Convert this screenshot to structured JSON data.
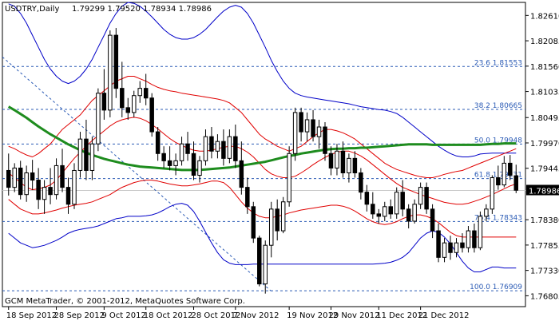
{
  "header": {
    "symbol_timeframe": "USDTRY,Daily",
    "ohlc": "1.79299 1.79520 1.78934 1.78986"
  },
  "footer": {
    "copyright": "GCM MetaTrader, © 2001-2012, MetaQuotes Software Corp."
  },
  "current_price": "1.78986",
  "colors": {
    "background": "#ffffff",
    "candle_body": "#000000",
    "envelope_red": "#e00000",
    "envelope_blue": "#0000c8",
    "moving_average": "#1e8c1e",
    "fibo_dashed": "#2b5bb5",
    "fibo_text": "#2b5bb5",
    "grid": "#c8c8c8",
    "price_tag_bg": "#000000",
    "price_tag_text": "#ffffff"
  },
  "chart_data": {
    "type": "candlestick",
    "symbol": "USDTRY",
    "timeframe": "Daily",
    "ylim": [
      1.7658,
      1.8288
    ],
    "y_ticks": [
      "1.82610",
      "1.82085",
      "1.81560",
      "1.81035",
      "1.80495",
      "1.79970",
      "1.79445",
      "1.78986",
      "1.78380",
      "1.77855",
      "1.77330",
      "1.76805"
    ],
    "x_ticks": [
      "18 Sep 2012",
      "28 Sep 2012",
      "9 Oct 2012",
      "18 Oct 2012",
      "28 Oct 2012",
      "7 Nov 2012",
      "19 Nov 2012",
      "29 Nov 2012",
      "11 Dec 2012",
      "21 Dec 2012"
    ],
    "fibonacci_levels": [
      {
        "label": "23.6 1.81553",
        "value": 1.81553
      },
      {
        "label": "38.2 1.80665",
        "value": 1.80665
      },
      {
        "label": "50.0 1.79948",
        "value": 1.79948
      },
      {
        "label": "61.8 1.79231",
        "value": 1.79231
      },
      {
        "label": "76.4 1.78343",
        "value": 1.78343
      },
      {
        "label": "100.0 1.76909",
        "value": 1.76909
      }
    ],
    "candles": [
      [
        1.794,
        1.7975,
        1.7888,
        1.7905
      ],
      [
        1.7905,
        1.7955,
        1.7895,
        1.7945
      ],
      [
        1.7945,
        1.796,
        1.788,
        1.789
      ],
      [
        1.789,
        1.795,
        1.7875,
        1.7935
      ],
      [
        1.7935,
        1.7962,
        1.79,
        1.792
      ],
      [
        1.792,
        1.7945,
        1.786,
        1.788
      ],
      [
        1.788,
        1.792,
        1.785,
        1.7905
      ],
      [
        1.7905,
        1.7945,
        1.787,
        1.789
      ],
      [
        1.789,
        1.7965,
        1.788,
        1.795
      ],
      [
        1.795,
        1.7985,
        1.7895,
        1.7905
      ],
      [
        1.7905,
        1.7925,
        1.785,
        1.787
      ],
      [
        1.787,
        1.7955,
        1.786,
        1.794
      ],
      [
        1.794,
        1.802,
        1.7925,
        1.8005
      ],
      [
        1.8005,
        1.8045,
        1.792,
        1.794
      ],
      [
        1.794,
        1.801,
        1.792,
        1.7995
      ],
      [
        1.7995,
        1.811,
        1.798,
        1.81
      ],
      [
        1.81,
        1.815,
        1.8045,
        1.8065
      ],
      [
        1.8065,
        1.823,
        1.805,
        1.822
      ],
      [
        1.822,
        1.8235,
        1.809,
        1.811
      ],
      [
        1.811,
        1.8165,
        1.805,
        1.807
      ],
      [
        1.807,
        1.809,
        1.8045,
        1.806
      ],
      [
        1.806,
        1.8105,
        1.805,
        1.8095
      ],
      [
        1.8095,
        1.8125,
        1.808,
        1.811
      ],
      [
        1.811,
        1.814,
        1.8075,
        1.809
      ],
      [
        1.809,
        1.81,
        1.801,
        1.802
      ],
      [
        1.802,
        1.803,
        1.796,
        1.7975
      ],
      [
        1.7975,
        1.799,
        1.7945,
        1.796
      ],
      [
        1.796,
        1.799,
        1.794,
        1.795
      ],
      [
        1.795,
        1.7975,
        1.793,
        1.796
      ],
      [
        1.796,
        1.801,
        1.795,
        1.7995
      ],
      [
        1.7995,
        1.802,
        1.796,
        1.7975
      ],
      [
        1.7975,
        1.8,
        1.792,
        1.793
      ],
      [
        1.793,
        1.797,
        1.7915,
        1.796
      ],
      [
        1.796,
        1.8025,
        1.795,
        1.801
      ],
      [
        1.801,
        1.803,
        1.7965,
        1.798
      ],
      [
        1.798,
        1.8015,
        1.7965,
        1.8
      ],
      [
        1.8,
        1.8025,
        1.795,
        1.7965
      ],
      [
        1.7965,
        1.8025,
        1.7955,
        1.801
      ],
      [
        1.801,
        1.8035,
        1.7945,
        1.796
      ],
      [
        1.796,
        1.8,
        1.789,
        1.7905
      ],
      [
        1.7905,
        1.7925,
        1.785,
        1.7865
      ],
      [
        1.7865,
        1.7875,
        1.779,
        1.78
      ],
      [
        1.78,
        1.7805,
        1.77,
        1.7705
      ],
      [
        1.7705,
        1.7795,
        1.7685,
        1.7785
      ],
      [
        1.7785,
        1.7875,
        1.776,
        1.786
      ],
      [
        1.786,
        1.788,
        1.7795,
        1.7815
      ],
      [
        1.7815,
        1.7885,
        1.781,
        1.7875
      ],
      [
        1.7875,
        1.799,
        1.7865,
        1.7975
      ],
      [
        1.7975,
        1.807,
        1.796,
        1.806
      ],
      [
        1.806,
        1.807,
        1.8,
        1.802
      ],
      [
        1.802,
        1.806,
        1.8,
        1.8045
      ],
      [
        1.8045,
        1.8065,
        1.8,
        1.801
      ],
      [
        1.801,
        1.8045,
        1.7985,
        1.803
      ],
      [
        1.803,
        1.804,
        1.796,
        1.7975
      ],
      [
        1.7975,
        1.799,
        1.793,
        1.7945
      ],
      [
        1.7945,
        1.7995,
        1.793,
        1.798
      ],
      [
        1.798,
        1.8,
        1.7925,
        1.7935
      ],
      [
        1.7935,
        1.7975,
        1.7915,
        1.7965
      ],
      [
        1.7965,
        1.798,
        1.7925,
        1.7935
      ],
      [
        1.7935,
        1.7945,
        1.788,
        1.7895
      ],
      [
        1.7895,
        1.791,
        1.7855,
        1.787
      ],
      [
        1.787,
        1.7895,
        1.784,
        1.785
      ],
      [
        1.785,
        1.786,
        1.783,
        1.7845
      ],
      [
        1.7845,
        1.7875,
        1.7835,
        1.7865
      ],
      [
        1.7865,
        1.788,
        1.784,
        1.785
      ],
      [
        1.785,
        1.7905,
        1.784,
        1.7895
      ],
      [
        1.7895,
        1.792,
        1.7845,
        1.786
      ],
      [
        1.786,
        1.787,
        1.782,
        1.7835
      ],
      [
        1.7835,
        1.788,
        1.783,
        1.787
      ],
      [
        1.787,
        1.7915,
        1.786,
        1.7905
      ],
      [
        1.7905,
        1.7915,
        1.785,
        1.786
      ],
      [
        1.786,
        1.787,
        1.78,
        1.7815
      ],
      [
        1.7815,
        1.783,
        1.775,
        1.776
      ],
      [
        1.776,
        1.78,
        1.775,
        1.779
      ],
      [
        1.779,
        1.7805,
        1.7755,
        1.777
      ],
      [
        1.777,
        1.78,
        1.776,
        1.779
      ],
      [
        1.779,
        1.781,
        1.777,
        1.778
      ],
      [
        1.778,
        1.7825,
        1.777,
        1.7815
      ],
      [
        1.7815,
        1.783,
        1.777,
        1.778
      ],
      [
        1.778,
        1.7855,
        1.7775,
        1.7845
      ],
      [
        1.7845,
        1.787,
        1.7835,
        1.786
      ],
      [
        1.786,
        1.793,
        1.785,
        1.7925
      ],
      [
        1.7925,
        1.795,
        1.79,
        1.791
      ],
      [
        1.791,
        1.797,
        1.7905,
        1.7955
      ],
      [
        1.7955,
        1.7972,
        1.792,
        1.793
      ],
      [
        1.7929,
        1.7952,
        1.7893,
        1.7899
      ]
    ],
    "moving_average": [
      1.8072,
      1.8065,
      1.8057,
      1.8049,
      1.804,
      1.8031,
      1.8023,
      1.8015,
      1.8008,
      1.8001,
      1.7994,
      1.7988,
      1.7982,
      1.7977,
      1.7972,
      1.7968,
      1.7964,
      1.7961,
      1.7958,
      1.7955,
      1.7952,
      1.795,
      1.7948,
      1.7947,
      1.7946,
      1.7945,
      1.7944,
      1.7943,
      1.7942,
      1.7941,
      1.7941,
      1.7941,
      1.7941,
      1.7942,
      1.7943,
      1.7944,
      1.7945,
      1.7946,
      1.7948,
      1.795,
      1.7952,
      1.7954,
      1.7956,
      1.7958,
      1.7961,
      1.7964,
      1.7967,
      1.797,
      1.7972,
      1.7975,
      1.7977,
      1.7979,
      1.7981,
      1.7983,
      1.7984,
      1.7985,
      1.7985,
      1.7986,
      1.7986,
      1.7987,
      1.7987,
      1.7988,
      1.7989,
      1.799,
      1.7991,
      1.7992,
      1.7993,
      1.7994,
      1.7994,
      1.7994,
      1.7994,
      1.7993,
      1.7993,
      1.7993,
      1.7993,
      1.7993,
      1.7993,
      1.7993,
      1.7993,
      1.7993,
      1.7994,
      1.7995,
      1.7995,
      1.7996,
      1.7996,
      1.7996
    ],
    "envelope_upper_red": [
      1.799,
      1.7985,
      1.7978,
      1.7972,
      1.7968,
      1.7975,
      1.7985,
      1.7995,
      1.801,
      1.8025,
      1.8035,
      1.8045,
      1.8055,
      1.807,
      1.8085,
      1.8095,
      1.8105,
      1.8115,
      1.8125,
      1.813,
      1.8135,
      1.8135,
      1.813,
      1.8125,
      1.8118,
      1.8112,
      1.8108,
      1.8105,
      1.8103,
      1.81,
      1.8098,
      1.8096,
      1.8094,
      1.8092,
      1.809,
      1.8088,
      1.8085,
      1.808,
      1.807,
      1.806,
      1.8045,
      1.803,
      1.8015,
      1.8005,
      1.7998,
      1.799,
      1.7985,
      1.798,
      1.7985,
      1.799,
      1.8,
      1.801,
      1.8018,
      1.8025,
      1.8025,
      1.8022,
      1.8018,
      1.8012,
      1.8005,
      1.7995,
      1.7985,
      1.7975,
      1.7965,
      1.7955,
      1.7948,
      1.7942,
      1.7938,
      1.7934,
      1.793,
      1.7927,
      1.7925,
      1.7925,
      1.7928,
      1.7932,
      1.7935,
      1.7938,
      1.794,
      1.7945,
      1.795,
      1.7955,
      1.796,
      1.7965,
      1.797,
      1.7975,
      1.798,
      1.7985
    ],
    "envelope_mid_red": [
      1.7935,
      1.7925,
      1.7915,
      1.7905,
      1.79,
      1.7902,
      1.7905,
      1.791,
      1.792,
      1.7935,
      1.795,
      1.7965,
      1.7978,
      1.799,
      1.8002,
      1.8012,
      1.8022,
      1.8032,
      1.804,
      1.8045,
      1.8048,
      1.805,
      1.8048,
      1.8043,
      1.8035,
      1.8026,
      1.8016,
      1.8006,
      1.7998,
      1.7992,
      1.7986,
      1.7982,
      1.798,
      1.798,
      1.7982,
      1.7985,
      1.7988,
      1.799,
      1.799,
      1.7985,
      1.7978,
      1.7968,
      1.7955,
      1.7942,
      1.7933,
      1.7928,
      1.7925,
      1.7925,
      1.7928,
      1.7935,
      1.7943,
      1.7952,
      1.796,
      1.7967,
      1.7973,
      1.7978,
      1.798,
      1.798,
      1.7976,
      1.797,
      1.7962,
      1.7952,
      1.7942,
      1.7932,
      1.7922,
      1.7913,
      1.7905,
      1.79,
      1.7895,
      1.789,
      1.7886,
      1.7882,
      1.7878,
      1.7874,
      1.7872,
      1.787,
      1.787,
      1.7872,
      1.7876,
      1.788,
      1.7885,
      1.789,
      1.7896,
      1.7902,
      1.7908,
      1.7912
    ],
    "envelope_lower_red": [
      1.788,
      1.787,
      1.786,
      1.7855,
      1.785,
      1.785,
      1.7852,
      1.7855,
      1.7858,
      1.7862,
      1.7865,
      1.7868,
      1.787,
      1.7872,
      1.7875,
      1.788,
      1.7885,
      1.789,
      1.7898,
      1.7905,
      1.791,
      1.7915,
      1.7918,
      1.792,
      1.792,
      1.7918,
      1.7915,
      1.7912,
      1.791,
      1.7908,
      1.7908,
      1.791,
      1.7912,
      1.7915,
      1.7918,
      1.7918,
      1.7915,
      1.7905,
      1.789,
      1.7875,
      1.7862,
      1.7852,
      1.7845,
      1.7842,
      1.7842,
      1.7845,
      1.7848,
      1.7852,
      1.7855,
      1.7858,
      1.786,
      1.7862,
      1.7864,
      1.7866,
      1.7868,
      1.7868,
      1.7866,
      1.7862,
      1.7856,
      1.7848,
      1.784,
      1.7834,
      1.783,
      1.7828,
      1.783,
      1.7834,
      1.784,
      1.7845,
      1.7848,
      1.7848,
      1.7845,
      1.784,
      1.7832,
      1.7822,
      1.7812,
      1.7805,
      1.7802,
      1.7802,
      1.7802,
      1.7802,
      1.7802,
      1.7802,
      1.7802,
      1.7802,
      1.7802,
      1.7802
    ],
    "band_upper_blue": [
      1.8285,
      1.828,
      1.8265,
      1.8245,
      1.822,
      1.8195,
      1.817,
      1.815,
      1.8135,
      1.8125,
      1.812,
      1.8125,
      1.8135,
      1.815,
      1.817,
      1.8195,
      1.822,
      1.8245,
      1.8265,
      1.828,
      1.8288,
      1.8286,
      1.828,
      1.827,
      1.8258,
      1.8245,
      1.8232,
      1.8222,
      1.8215,
      1.8212,
      1.8212,
      1.8215,
      1.8222,
      1.8232,
      1.8245,
      1.8258,
      1.827,
      1.8278,
      1.8282,
      1.8278,
      1.8265,
      1.8245,
      1.822,
      1.8195,
      1.8168,
      1.8145,
      1.8125,
      1.811,
      1.81,
      1.8095,
      1.8092,
      1.809,
      1.8088,
      1.8086,
      1.8084,
      1.8082,
      1.808,
      1.8078,
      1.8075,
      1.8072,
      1.807,
      1.8068,
      1.8066,
      1.8065,
      1.8062,
      1.8058,
      1.805,
      1.804,
      1.803,
      1.802,
      1.801,
      1.8,
      1.799,
      1.7982,
      1.7975,
      1.797,
      1.7968,
      1.7968,
      1.797,
      1.7974,
      1.7975,
      1.7976,
      1.7976,
      1.7976,
      1.7976,
      1.7976
    ],
    "band_lower_blue": [
      1.781,
      1.78,
      1.779,
      1.7785,
      1.778,
      1.7782,
      1.7785,
      1.779,
      1.7795,
      1.7802,
      1.781,
      1.7815,
      1.7818,
      1.782,
      1.7822,
      1.7825,
      1.783,
      1.7835,
      1.784,
      1.7842,
      1.7845,
      1.7845,
      1.7845,
      1.7846,
      1.7848,
      1.7852,
      1.7858,
      1.7865,
      1.787,
      1.7872,
      1.7868,
      1.7855,
      1.7835,
      1.7812,
      1.779,
      1.777,
      1.7755,
      1.7748,
      1.7745,
      1.7745,
      1.7745,
      1.7746,
      1.7746,
      1.7746,
      1.7746,
      1.7746,
      1.7746,
      1.7746,
      1.7746,
      1.7746,
      1.7746,
      1.7746,
      1.7746,
      1.7746,
      1.7746,
      1.7746,
      1.7746,
      1.7746,
      1.7746,
      1.7746,
      1.7746,
      1.7746,
      1.7747,
      1.7748,
      1.775,
      1.7754,
      1.776,
      1.777,
      1.7785,
      1.78,
      1.781,
      1.7815,
      1.7812,
      1.7802,
      1.7788,
      1.777,
      1.7752,
      1.7738,
      1.773,
      1.773,
      1.7735,
      1.774,
      1.774,
      1.7738,
      1.7738,
      1.7738
    ],
    "fibo_trendline": {
      "from_index": 0,
      "from_value": 1.8175,
      "to_index": 44,
      "to_value": 1.769
    }
  }
}
